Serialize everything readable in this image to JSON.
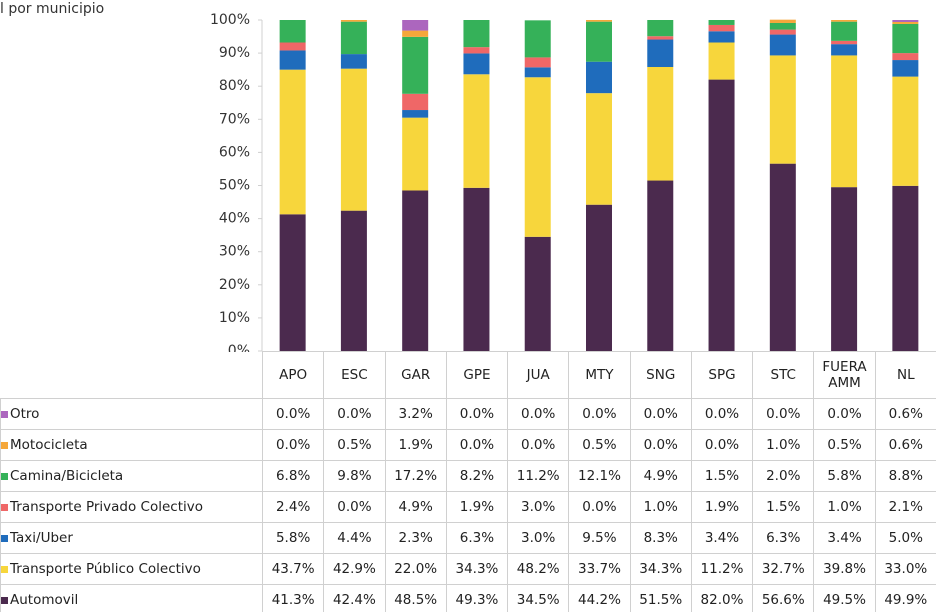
{
  "chart_data": {
    "type": "stacked_bar",
    "title": "l por municipio",
    "categories": [
      "APO",
      "ESC",
      "GAR",
      "GPE",
      "JUA",
      "MTY",
      "SNG",
      "SPG",
      "STC",
      "FUERA AMM",
      "NL"
    ],
    "series": [
      {
        "name": "Automovil",
        "color": "#4b2a4e",
        "values": [
          41.3,
          42.4,
          48.5,
          49.3,
          34.5,
          44.2,
          51.5,
          82.0,
          56.6,
          49.5,
          49.9
        ],
        "value_labels": [
          "41.3%",
          "42.4%",
          "48.5%",
          "49.3%",
          "34.5%",
          "44.2%",
          "51.5%",
          "82.0%",
          "56.6%",
          "49.5%",
          "49.9%"
        ]
      },
      {
        "name": "Transporte Público Colectivo",
        "color": "#f7d63c",
        "values": [
          43.7,
          42.9,
          22.0,
          34.3,
          48.2,
          33.7,
          34.3,
          11.2,
          32.7,
          39.8,
          33.0
        ],
        "value_labels": [
          "43.7%",
          "42.9%",
          "22.0%",
          "34.3%",
          "48.2%",
          "33.7%",
          "34.3%",
          "11.2%",
          "32.7%",
          "39.8%",
          "33.0%"
        ]
      },
      {
        "name": "Taxi/Uber",
        "color": "#1f6cbc",
        "values": [
          5.8,
          4.4,
          2.3,
          6.3,
          3.0,
          9.5,
          8.3,
          3.4,
          6.3,
          3.4,
          5.0
        ],
        "value_labels": [
          "5.8%",
          "4.4%",
          "2.3%",
          "6.3%",
          "3.0%",
          "9.5%",
          "8.3%",
          "3.4%",
          "6.3%",
          "3.4%",
          "5.0%"
        ]
      },
      {
        "name": "Transporte Privado Colectivo",
        "color": "#ef6767",
        "values": [
          2.4,
          0,
          4.9,
          1.9,
          3.0,
          0,
          1.0,
          1.9,
          1.5,
          1.0,
          2.1
        ],
        "value_labels": [
          "2.4%",
          "0.0%",
          "4.9%",
          "1.9%",
          "3.0%",
          "0.0%",
          "1.0%",
          "1.9%",
          "1.5%",
          "1.0%",
          "2.1%"
        ]
      },
      {
        "name": "Camina/Bicicleta",
        "color": "#35b159",
        "values": [
          6.8,
          9.8,
          17.2,
          8.2,
          11.2,
          12.1,
          4.9,
          1.5,
          2.0,
          5.8,
          8.8
        ],
        "value_labels": [
          "6.8%",
          "9.8%",
          "17.2%",
          "8.2%",
          "11.2%",
          "12.1%",
          "4.9%",
          "1.5%",
          "2.0%",
          "5.8%",
          "8.8%"
        ]
      },
      {
        "name": "Motocicleta",
        "color": "#f5a73a",
        "values": [
          0,
          0.5,
          1.9,
          0,
          0,
          0.5,
          0,
          0,
          1.0,
          0.5,
          0.6
        ],
        "value_labels": [
          "0.0%",
          "0.5%",
          "1.9%",
          "0.0%",
          "0.0%",
          "0.5%",
          "0.0%",
          "0.0%",
          "1.0%",
          "0.5%",
          "0.6%"
        ]
      },
      {
        "name": "Otro",
        "color": "#ac66be",
        "values": [
          0,
          0,
          3.2,
          0,
          0,
          0,
          0,
          0,
          0,
          0,
          0.6
        ],
        "value_labels": [
          "0.0%",
          "0.0%",
          "3.2%",
          "0.0%",
          "0.0%",
          "0.0%",
          "0.0%",
          "0.0%",
          "0.0%",
          "0.0%",
          "0.6%"
        ]
      }
    ],
    "ylim": [
      0,
      100
    ],
    "yticks": [
      {
        "value": 0,
        "label": "0%"
      },
      {
        "value": 10,
        "label": "10%"
      },
      {
        "value": 20,
        "label": "20%"
      },
      {
        "value": 30,
        "label": "30%"
      },
      {
        "value": 40,
        "label": "40%"
      },
      {
        "value": 50,
        "label": "50%"
      },
      {
        "value": 60,
        "label": "60%"
      },
      {
        "value": 70,
        "label": "70%"
      },
      {
        "value": 80,
        "label": "80%"
      },
      {
        "value": 90,
        "label": "90%"
      },
      {
        "value": 100,
        "label": "100%"
      }
    ],
    "grid": false
  }
}
